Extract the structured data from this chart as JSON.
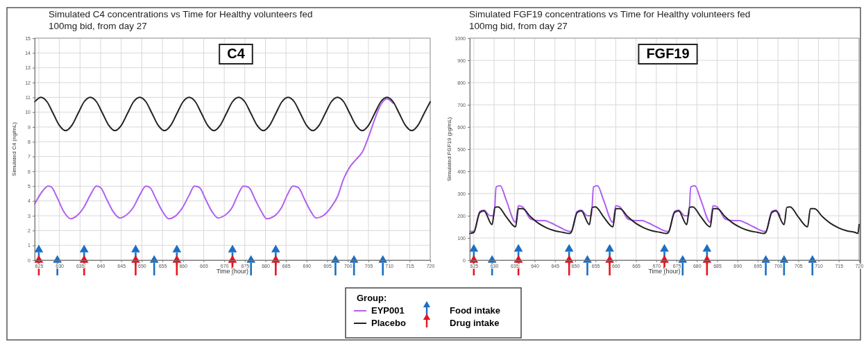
{
  "chart_data": [
    {
      "type": "line",
      "title": "Simulated C4 concentrations vs Time for Healthy volunteers fed 100mg bid, from day 27",
      "xlabel": "Time (hour)",
      "ylabel": "Simulated C4 (ng/mL)",
      "annotations": [
        "C4"
      ],
      "xlim": [
        624,
        720
      ],
      "ylim": [
        0,
        15
      ],
      "xticks": [
        625,
        630,
        635,
        640,
        645,
        650,
        655,
        660,
        665,
        670,
        675,
        680,
        685,
        690,
        695,
        700,
        705,
        710,
        715,
        720
      ],
      "yticks": [
        0,
        1,
        2,
        3,
        4,
        5,
        6,
        7,
        8,
        9,
        10,
        11,
        12,
        13,
        14,
        15
      ],
      "grid": true,
      "legend": "bottom",
      "legend_title": "Group:",
      "series": [
        {
          "name": "EYP001",
          "color": "#b15ff0",
          "x": [
            624,
            626,
            627.3,
            628,
            629.5,
            631,
            632.7,
            634,
            636,
            637.5,
            639,
            640,
            641.5,
            643,
            644.7,
            646,
            648,
            649.5,
            651,
            652,
            653.5,
            655,
            656.5,
            658,
            660,
            661.5,
            662.8,
            664,
            665.5,
            667,
            668.5,
            670,
            672,
            673.3,
            674.7,
            676,
            677.5,
            679,
            680.3,
            682,
            684,
            685.3,
            686.7,
            688,
            689.5,
            691,
            692.3,
            694,
            696,
            697.5,
            699,
            700.5,
            702,
            703.5,
            705,
            706.5,
            708,
            709.5,
            711
          ],
          "values": [
            3.8,
            4.7,
            5.0,
            4.95,
            4.2,
            3.3,
            2.8,
            2.95,
            3.6,
            4.4,
            5.0,
            4.9,
            4.1,
            3.3,
            2.85,
            3.0,
            3.6,
            4.4,
            5.0,
            4.9,
            4.1,
            3.3,
            2.8,
            2.95,
            3.6,
            4.4,
            5.0,
            4.9,
            4.1,
            3.3,
            2.85,
            3.0,
            3.6,
            4.4,
            5.0,
            4.9,
            4.1,
            3.3,
            2.8,
            2.95,
            3.6,
            4.4,
            5.0,
            4.9,
            4.1,
            3.3,
            2.85,
            3.0,
            3.6,
            4.3,
            5.5,
            6.3,
            6.8,
            7.3,
            8.3,
            9.5,
            10.5,
            10.9,
            10.6
          ]
        },
        {
          "name": "Placebo",
          "color": "#222222",
          "x": [
            624,
            625.5,
            627,
            628.5,
            630,
            631.5,
            633,
            634.5,
            636,
            637.5,
            639,
            640.5,
            642,
            643.5,
            645,
            646.5,
            648,
            649.5,
            651,
            652.5,
            654,
            655.5,
            657,
            658.5,
            660,
            661.5,
            663,
            664.5,
            666,
            667.5,
            669,
            670.5,
            672,
            673.5,
            675,
            676.5,
            678,
            679.5,
            681,
            682.5,
            684,
            685.5,
            687,
            688.5,
            690,
            691.5,
            693,
            694.5,
            696,
            697.5,
            699,
            700.5,
            702,
            703.5,
            705,
            706.5,
            708,
            709.5,
            711,
            712.5,
            714,
            715.5,
            717,
            718.5,
            720
          ],
          "values": [
            10.7,
            11,
            10.7,
            9.9,
            9.1,
            8.75,
            9.1,
            9.9,
            10.7,
            11,
            10.7,
            9.9,
            9.1,
            8.75,
            9.1,
            9.9,
            10.7,
            11,
            10.7,
            9.9,
            9.1,
            8.75,
            9.1,
            9.9,
            10.7,
            11,
            10.7,
            9.9,
            9.1,
            8.75,
            9.1,
            9.9,
            10.7,
            11,
            10.7,
            9.9,
            9.1,
            8.75,
            9.1,
            9.9,
            10.7,
            11,
            10.7,
            9.9,
            9.1,
            8.75,
            9.1,
            9.9,
            10.7,
            11,
            10.7,
            9.9,
            9.1,
            8.75,
            9.1,
            9.9,
            10.7,
            11,
            10.7,
            9.9,
            9.1,
            8.75,
            9.1,
            9.9,
            10.7
          ]
        },
        {
          "name": "Food intake",
          "type": "scatter",
          "marker": "triangle",
          "color": "#1a6fc4",
          "x": [
            625,
            629.5,
            636,
            648.5,
            653,
            658.5,
            672,
            676.5,
            682.5,
            697,
            701.5,
            708.5
          ],
          "values": [
            0.7,
            0,
            0.7,
            0.7,
            0,
            0.7,
            0.7,
            0,
            0.7,
            0,
            0,
            0
          ]
        },
        {
          "name": "Drug intake",
          "type": "scatter",
          "marker": "triangle",
          "color": "#e8141c",
          "x": [
            625,
            636,
            648.5,
            658.5,
            672,
            682.5
          ],
          "values": [
            0,
            0,
            0,
            0,
            0,
            0
          ]
        }
      ]
    },
    {
      "type": "line",
      "title": "Simulated FGF19 concentrations vs Time for Healthy volunteers fed 100mg bid, from day 27",
      "xlabel": "Time (hour)",
      "ylabel": "Simulated FGF19 (pg/mL)",
      "annotations": [
        "FGF19"
      ],
      "xlim": [
        624,
        720
      ],
      "ylim": [
        0,
        1000
      ],
      "xticks": [
        625,
        630,
        635,
        640,
        645,
        650,
        655,
        660,
        665,
        670,
        675,
        680,
        685,
        690,
        695,
        700,
        705,
        710,
        715,
        720
      ],
      "yticks": [
        0,
        100,
        200,
        300,
        400,
        500,
        600,
        700,
        800,
        900,
        1000
      ],
      "grid": true,
      "series": [
        {
          "color": "#b15ff0",
          "x": [
            624,
            625,
            626.5,
            627.5,
            629,
            630,
            630.5,
            631.5,
            633,
            635.3,
            636,
            637,
            639,
            641,
            642.5,
            644,
            646,
            648.5,
            649,
            650.5,
            651.5,
            653,
            654,
            654.5,
            655.5,
            657,
            659.3,
            660,
            661,
            663,
            665,
            666.5,
            668,
            670,
            672.5,
            673,
            674.5,
            675.5,
            677,
            678,
            678.5,
            679.5,
            681,
            683.3,
            684,
            685,
            687,
            689,
            690.5,
            692,
            694,
            696.5,
            697,
            698.5,
            699.5,
            700.5
          ],
          "values": [
            130,
            130,
            220,
            225,
            200,
            200,
            330,
            335,
            270,
            170,
            245,
            240,
            185,
            178,
            178,
            168,
            150,
            130,
            130,
            220,
            225,
            200,
            200,
            330,
            335,
            270,
            170,
            245,
            240,
            185,
            178,
            178,
            168,
            150,
            130,
            130,
            220,
            225,
            200,
            200,
            330,
            335,
            270,
            170,
            245,
            240,
            185,
            178,
            178,
            168,
            150,
            130,
            130,
            220,
            225,
            200
          ]
        },
        {
          "color": "#222222",
          "x": [
            624,
            625,
            626.5,
            627.5,
            629.5,
            630.2,
            631,
            633,
            635.3,
            636,
            637,
            639,
            641,
            643,
            645,
            647,
            648.5,
            649,
            650.5,
            651.5,
            653.5,
            654.2,
            655,
            657,
            659.3,
            660,
            661,
            663,
            665,
            667,
            669,
            671,
            672.5,
            673,
            674.5,
            675.5,
            677.5,
            678.2,
            679,
            681,
            683.3,
            684,
            685,
            687,
            689,
            691,
            693,
            695,
            696.5,
            697,
            698.5,
            699.5,
            701.5,
            702.2,
            703,
            705,
            707.3,
            708,
            709,
            711,
            713,
            715,
            717,
            719,
            719.7,
            720
          ],
          "values": [
            120,
            125,
            215,
            222,
            160,
            238,
            240,
            195,
            150,
            232,
            232,
            195,
            165,
            145,
            132,
            125,
            120,
            125,
            215,
            222,
            160,
            238,
            240,
            195,
            150,
            232,
            232,
            195,
            165,
            145,
            132,
            125,
            120,
            125,
            215,
            222,
            160,
            238,
            240,
            195,
            150,
            232,
            232,
            195,
            165,
            145,
            132,
            125,
            120,
            125,
            215,
            222,
            160,
            238,
            240,
            195,
            150,
            232,
            232,
            195,
            165,
            145,
            132,
            125,
            120,
            160
          ]
        },
        {
          "type": "scatter",
          "marker": "triangle",
          "color": "#1a6fc4",
          "x": [
            625,
            629.5,
            636,
            648.5,
            653,
            658.5,
            672,
            676.5,
            682.5,
            697,
            701.5,
            708.5
          ],
          "values": [
            50,
            0,
            50,
            50,
            0,
            50,
            50,
            0,
            50,
            0,
            0,
            0
          ]
        },
        {
          "type": "scatter",
          "marker": "triangle",
          "color": "#e8141c",
          "x": [
            625,
            636,
            648.5,
            658.5,
            672,
            682.5
          ],
          "values": [
            0,
            0,
            0,
            0,
            0,
            0
          ]
        }
      ]
    }
  ]
}
